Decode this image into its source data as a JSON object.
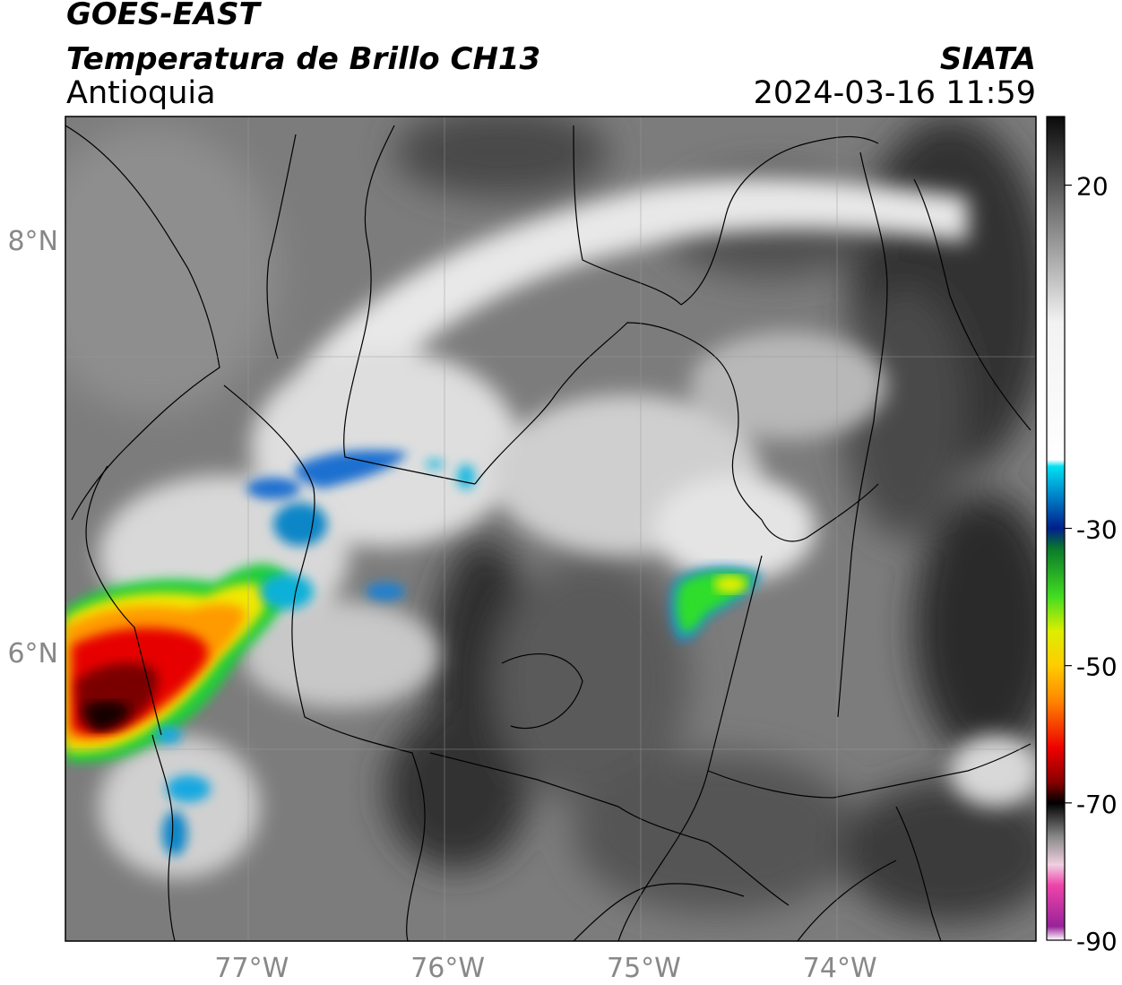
{
  "header": {
    "satellite": "GOES-EAST",
    "product": "Temperatura de Brillo CH13",
    "region": "Antioquia",
    "agency": "SIATA",
    "datetime": "2024-03-16 11:59"
  },
  "map": {
    "lat_range": [
      4.6,
      8.6
    ],
    "lon_range": [
      -77.95,
      -73.0
    ],
    "lat_ticks": [
      {
        "value": 8,
        "label": "8°N"
      },
      {
        "value": 6,
        "label": "6°N"
      }
    ],
    "lon_ticks": [
      {
        "value": -77,
        "label": "77°W"
      },
      {
        "value": -76,
        "label": "76°W"
      },
      {
        "value": -75,
        "label": "75°W"
      },
      {
        "value": -74,
        "label": "74°W"
      }
    ],
    "grid": true,
    "features": [
      {
        "name": "main-convective-system",
        "lon": -77.6,
        "lat": 6.3,
        "min_temp": -75
      },
      {
        "name": "secondary-convective-cell",
        "lon": -74.7,
        "lat": 6.75,
        "min_temp": -45
      }
    ]
  },
  "colorbar": {
    "range": [
      -90,
      30
    ],
    "ticks": [
      {
        "value": 20,
        "label": "20"
      },
      {
        "value": -30,
        "label": "-30"
      },
      {
        "value": -50,
        "label": "-50"
      },
      {
        "value": -70,
        "label": "-70"
      },
      {
        "value": -90,
        "label": "-90"
      }
    ],
    "stops": [
      {
        "value": 30,
        "color": "#0a0a0a"
      },
      {
        "value": 0,
        "color": "#f2f2f2"
      },
      {
        "value": -20,
        "color": "#ffffff"
      },
      {
        "value": -21,
        "color": "#00e0f0"
      },
      {
        "value": -25,
        "color": "#0088cc"
      },
      {
        "value": -30,
        "color": "#001f8c"
      },
      {
        "value": -33,
        "color": "#0a7a2a"
      },
      {
        "value": -40,
        "color": "#44dd22"
      },
      {
        "value": -45,
        "color": "#ddee00"
      },
      {
        "value": -50,
        "color": "#ffcc00"
      },
      {
        "value": -55,
        "color": "#ff8800"
      },
      {
        "value": -62,
        "color": "#ee0000"
      },
      {
        "value": -67,
        "color": "#880000"
      },
      {
        "value": -70,
        "color": "#000000"
      },
      {
        "value": -75,
        "color": "#8a8a8a"
      },
      {
        "value": -79,
        "color": "#f0d0e0"
      },
      {
        "value": -82,
        "color": "#ee44aa"
      },
      {
        "value": -88,
        "color": "#992299"
      },
      {
        "value": -90,
        "color": "#ffffff"
      }
    ]
  }
}
